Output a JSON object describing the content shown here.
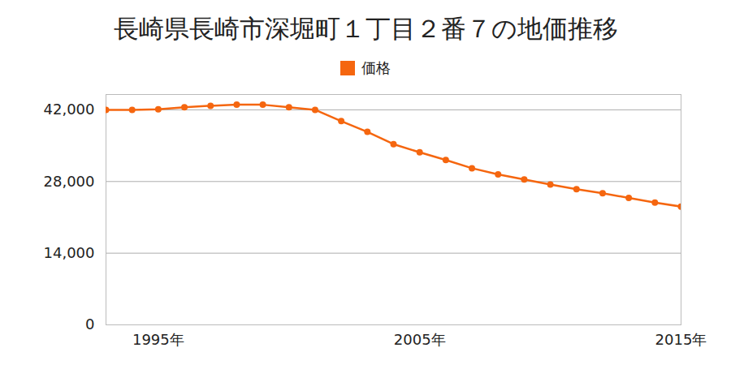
{
  "chart_data": {
    "type": "line",
    "title": "長崎県長崎市深堀町１丁目２番７の地価推移",
    "x": [
      1993,
      1994,
      1995,
      1996,
      1997,
      1998,
      1999,
      2000,
      2001,
      2002,
      2003,
      2004,
      2005,
      2006,
      2007,
      2008,
      2009,
      2010,
      2011,
      2012,
      2013,
      2014,
      2015
    ],
    "series": [
      {
        "name": "価格",
        "color": "#f5660f",
        "marker": "circle",
        "values": [
          42000,
          42000,
          42100,
          42500,
          42800,
          43000,
          43000,
          42500,
          42000,
          39800,
          37700,
          35300,
          33700,
          32200,
          30600,
          29400,
          28400,
          27400,
          26500,
          25700,
          24800,
          23900,
          23100
        ]
      }
    ],
    "xlim": [
      1993,
      2015
    ],
    "xticks": [
      {
        "value": 1995,
        "label": "1995年"
      },
      {
        "value": 2005,
        "label": "2005年"
      },
      {
        "value": 2015,
        "label": "2015年"
      }
    ],
    "ylim": [
      0,
      45000
    ],
    "yticks": [
      0,
      {
        "value": 14000,
        "label": "14,000"
      },
      {
        "value": 28000,
        "label": "28,000"
      },
      {
        "value": 42000,
        "label": "42,000"
      }
    ],
    "grid": true,
    "legend": "top"
  }
}
